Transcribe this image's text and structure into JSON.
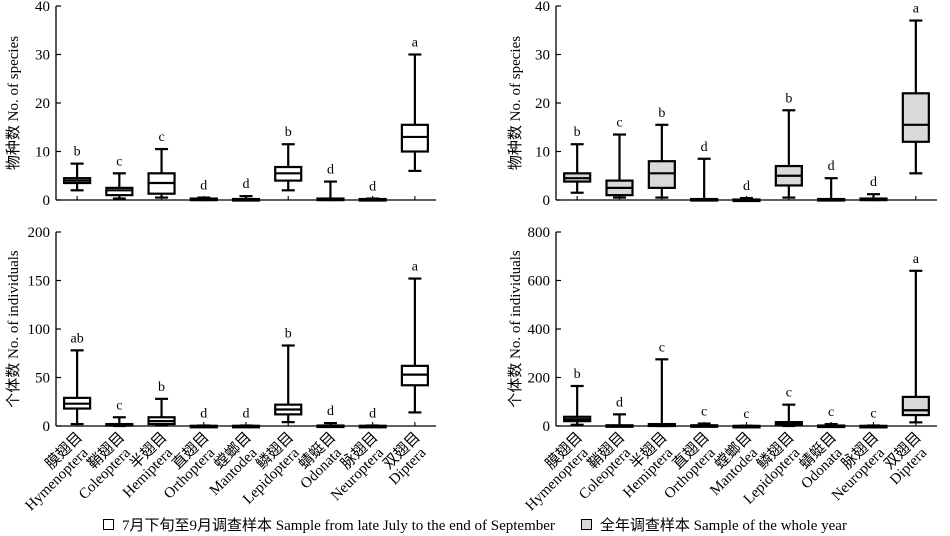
{
  "legend": {
    "items": [
      {
        "label": "7月下旬至9月调查样本 Sample from late July to the end of September",
        "color": "#ffffff"
      },
      {
        "label": "全年调查样本 Sample of the whole year",
        "color": "#d9d9d9"
      }
    ]
  },
  "chart_data": [
    {
      "type": "box",
      "panel": "top-left",
      "ylabel": "物种数 No. of species",
      "ylim": [
        0,
        40
      ],
      "yticks": [
        0,
        10,
        20,
        30,
        40
      ],
      "fill": "#ffffff",
      "categories": [
        "膜翅目 Hymenoptera",
        "鞘翅目 Coleoptera",
        "半翅目 Hemiptera",
        "直翅目 Orthoptera",
        "螳螂目 Mantodea",
        "鳞翅目 Lepidoptera",
        "蜻蜓目 Odonata",
        "脉翅目 Neuroptera",
        "双翅目 Diptera"
      ],
      "boxes": [
        {
          "min": 2,
          "q1": 3.5,
          "median": 4,
          "q3": 4.5,
          "max": 7.5
        },
        {
          "min": 0.3,
          "q1": 1,
          "median": 2,
          "q3": 2.5,
          "max": 5.5
        },
        {
          "min": 0.5,
          "q1": 1.3,
          "median": 3.5,
          "q3": 5.5,
          "max": 10.5
        },
        {
          "min": 0,
          "q1": 0,
          "median": 0,
          "q3": 0.3,
          "max": 0.5
        },
        {
          "min": 0,
          "q1": 0,
          "median": 0,
          "q3": 0.2,
          "max": 0.8
        },
        {
          "min": 2,
          "q1": 4,
          "median": 5.5,
          "q3": 6.8,
          "max": 11.5
        },
        {
          "min": 0,
          "q1": 0,
          "median": 0,
          "q3": 0.3,
          "max": 3.8
        },
        {
          "min": 0,
          "q1": 0,
          "median": 0,
          "q3": 0.2,
          "max": 0.3
        },
        {
          "min": 6,
          "q1": 10,
          "median": 13,
          "q3": 15.5,
          "max": 30
        }
      ],
      "significance": [
        "b",
        "c",
        "c",
        "d",
        "d",
        "b",
        "d",
        "d",
        "a"
      ]
    },
    {
      "type": "box",
      "panel": "top-right",
      "ylabel": "物种数 No. of species",
      "ylim": [
        0,
        40
      ],
      "yticks": [
        0,
        10,
        20,
        30,
        40
      ],
      "fill": "#d9d9d9",
      "categories": [
        "膜翅目 Hymenoptera",
        "鞘翅目 Coleoptera",
        "半翅目 Hemiptera",
        "直翅目 Orthoptera",
        "螳螂目 Mantodea",
        "鳞翅目 Lepidoptera",
        "蜻蜓目 Odonata",
        "脉翅目 Neuroptera",
        "双翅目 Diptera"
      ],
      "boxes": [
        {
          "min": 1.5,
          "q1": 3.8,
          "median": 4.5,
          "q3": 5.5,
          "max": 11.5
        },
        {
          "min": 0.5,
          "q1": 1,
          "median": 2.5,
          "q3": 4,
          "max": 13.5
        },
        {
          "min": 0.5,
          "q1": 2.5,
          "median": 5.5,
          "q3": 8,
          "max": 15.5
        },
        {
          "min": 0,
          "q1": 0,
          "median": 0,
          "q3": 0.2,
          "max": 8.5
        },
        {
          "min": 0,
          "q1": 0,
          "median": 0,
          "q3": 0.1,
          "max": 0.4
        },
        {
          "min": 0.5,
          "q1": 3,
          "median": 5,
          "q3": 7,
          "max": 18.5
        },
        {
          "min": 0,
          "q1": 0,
          "median": 0,
          "q3": 0.2,
          "max": 4.5
        },
        {
          "min": 0,
          "q1": 0,
          "median": 0,
          "q3": 0.3,
          "max": 1.2
        },
        {
          "min": 5.5,
          "q1": 12,
          "median": 15.5,
          "q3": 22,
          "max": 37
        }
      ],
      "significance": [
        "b",
        "c",
        "b",
        "d",
        "d",
        "b",
        "d",
        "d",
        "a"
      ]
    },
    {
      "type": "box",
      "panel": "bottom-left",
      "ylabel": "个体数 No. of individuals",
      "ylim": [
        0,
        200
      ],
      "yticks": [
        0,
        50,
        100,
        150,
        200
      ],
      "fill": "#ffffff",
      "categories": [
        "膜翅目 Hymenoptera",
        "鞘翅目 Coleoptera",
        "半翅目 Hemiptera",
        "直翅目 Orthoptera",
        "螳螂目 Mantodea",
        "鳞翅目 Lepidoptera",
        "蜻蜓目 Odonata",
        "脉翅目 Neuroptera",
        "双翅目 Diptera"
      ],
      "boxes": [
        {
          "min": 2,
          "q1": 18,
          "median": 23,
          "q3": 29,
          "max": 78
        },
        {
          "min": 0,
          "q1": 0.5,
          "median": 1,
          "q3": 2,
          "max": 9
        },
        {
          "min": 0.5,
          "q1": 2,
          "median": 5,
          "q3": 9,
          "max": 28
        },
        {
          "min": 0,
          "q1": 0,
          "median": 0,
          "q3": 0.2,
          "max": 0.5
        },
        {
          "min": 0,
          "q1": 0,
          "median": 0,
          "q3": 0.2,
          "max": 0.5
        },
        {
          "min": 4,
          "q1": 12,
          "median": 17,
          "q3": 22,
          "max": 83
        },
        {
          "min": 0,
          "q1": 0,
          "median": 0,
          "q3": 0.5,
          "max": 3
        },
        {
          "min": 0,
          "q1": 0,
          "median": 0,
          "q3": 0.2,
          "max": 0.5
        },
        {
          "min": 14,
          "q1": 42,
          "median": 53,
          "q3": 62,
          "max": 152
        }
      ],
      "significance": [
        "ab",
        "c",
        "b",
        "d",
        "d",
        "b",
        "d",
        "d",
        "a"
      ]
    },
    {
      "type": "box",
      "panel": "bottom-right",
      "ylabel": "个体数 No. of individuals",
      "ylim": [
        0,
        800
      ],
      "yticks": [
        0,
        200,
        400,
        600,
        800
      ],
      "fill": "#d9d9d9",
      "categories": [
        "膜翅目 Hymenoptera",
        "鞘翅目 Coleoptera",
        "半翅目 Hemiptera",
        "直翅目 Orthoptera",
        "螳螂目 Mantodea",
        "鳞翅目 Lepidoptera",
        "蜻蜓目 Odonata",
        "脉翅目 Neuroptera",
        "双翅目 Diptera"
      ],
      "boxes": [
        {
          "min": 5,
          "q1": 20,
          "median": 28,
          "q3": 38,
          "max": 165
        },
        {
          "min": 0,
          "q1": 0,
          "median": 0,
          "q3": 3,
          "max": 48
        },
        {
          "min": 0,
          "q1": 0,
          "median": 2,
          "q3": 8,
          "max": 275
        },
        {
          "min": 0,
          "q1": 0,
          "median": 0,
          "q3": 3,
          "max": 10
        },
        {
          "min": 0,
          "q1": 0,
          "median": 0,
          "q3": 0.5,
          "max": 1
        },
        {
          "min": 0,
          "q1": 3,
          "median": 8,
          "q3": 16,
          "max": 88
        },
        {
          "min": 0,
          "q1": 0,
          "median": 0,
          "q3": 2,
          "max": 8
        },
        {
          "min": 0,
          "q1": 0,
          "median": 0,
          "q3": 0.5,
          "max": 2
        },
        {
          "min": 15,
          "q1": 45,
          "median": 65,
          "q3": 120,
          "max": 640
        }
      ],
      "significance": [
        "b",
        "d",
        "c",
        "c",
        "c",
        "c",
        "c",
        "c",
        "a"
      ]
    }
  ]
}
